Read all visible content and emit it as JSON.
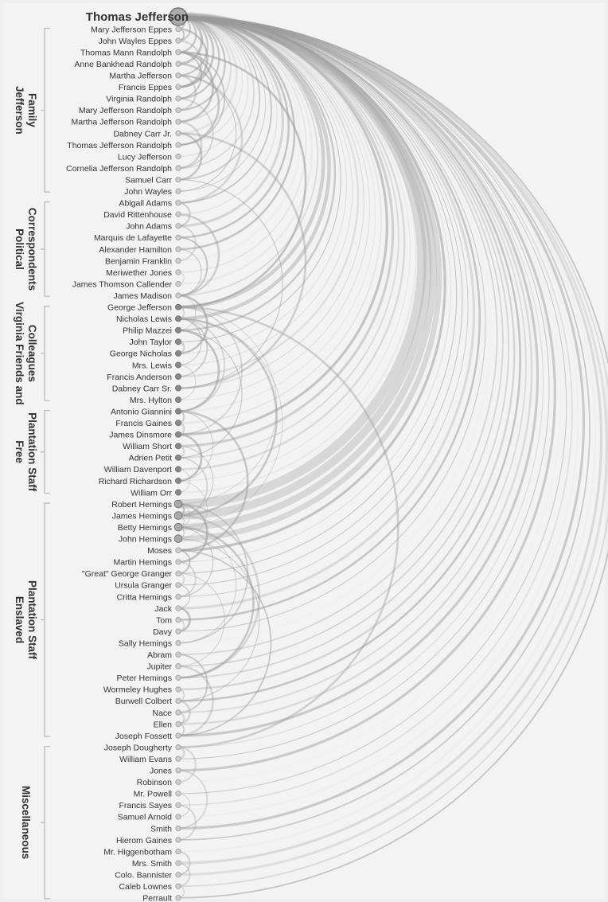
{
  "root": {
    "label": "Thomas Jefferson"
  },
  "groups": [
    {
      "label_lines": [
        "Jefferson",
        "Family"
      ],
      "members": [
        "Mary Jefferson Eppes",
        "John Wayles Eppes",
        "Thomas Mann Randolph",
        "Anne Bankhead Randolph",
        "Martha Jefferson",
        "Francis Eppes",
        "Virginia Randolph",
        "Mary Jefferson Randolph",
        "Martha Jefferson Randolph",
        "Dabney Carr Jr.",
        "Thomas Jefferson Randolph",
        "Lucy Jefferson",
        "Cornelia Jefferson Randolph",
        "Samuel Carr",
        "John Wayles"
      ]
    },
    {
      "label_lines": [
        "Political",
        "Correspondents"
      ],
      "members": [
        "Abigail Adams",
        "David Rittenhouse",
        "John Adams",
        "Marquis de Lafayette",
        "Alexander Hamilton",
        "Benjamin Franklin",
        "Meriwether Jones",
        "James Thomson Callender",
        "James Madison"
      ]
    },
    {
      "label_lines": [
        "Virginia Friends and",
        "Colleagues"
      ],
      "members": [
        "George Jefferson",
        "Nicholas Lewis",
        "Philip Mazzei",
        "John Taylor",
        "George Nicholas",
        "Mrs. Lewis",
        "Francis Anderson",
        "Dabney Carr Sr.",
        "Mrs. Hylton"
      ]
    },
    {
      "label_lines": [
        "Free",
        "Plantation Staff"
      ],
      "members": [
        "Antonio Giannini",
        "Francis Gaines",
        "James Dinsmore",
        "William Short",
        "Adrien Petit",
        "William Davenport",
        "Richard Richardson",
        "William Orr"
      ]
    },
    {
      "label_lines": [
        "Enslaved",
        "Plantation Staff"
      ],
      "members": [
        "Robert Hemings",
        "James Hemings",
        "Betty Hemings",
        "John Hemings",
        "Moses",
        "Martin Hemings",
        "\"Great\" George Granger",
        "Ursula Granger",
        "Critta Hemings",
        "Jack",
        "Tom",
        "Davy",
        "Sally Hemings",
        "Abram",
        "Jupiter",
        "Peter Hemings",
        "Wormeley Hughes",
        "Burwell Colbert",
        "Nace",
        "Ellen",
        "Joseph Fossett"
      ]
    },
    {
      "label_lines": [
        "Miscellaneous"
      ],
      "members": [
        "Joseph Dougherty",
        "William Evans",
        "Jones",
        "Robinson",
        "Mr. Powell",
        "Francis Sayes",
        "Samuel Arnold",
        "Smith",
        "Hierom Gaines",
        "Mr. Higgenbotham",
        "Mrs. Smith",
        "Colo. Bannister",
        "Caleb Lownes",
        "Perrault"
      ]
    }
  ],
  "colors": {
    "node_light": "#cdcdcd",
    "node_dark": "#888888",
    "arc": "#9a9a9a",
    "bracket": "#bbbbbb"
  },
  "cross_links": [
    [
      "Mary Jefferson Eppes",
      "John Wayles Eppes"
    ],
    [
      "Mary Jefferson Eppes",
      "Francis Eppes"
    ],
    [
      "John Wayles Eppes",
      "Francis Eppes"
    ],
    [
      "Thomas Mann Randolph",
      "Martha Jefferson Randolph"
    ],
    [
      "Thomas Mann Randolph",
      "Virginia Randolph"
    ],
    [
      "Thomas Mann Randolph",
      "Thomas Jefferson Randolph"
    ],
    [
      "Anne Bankhead Randolph",
      "Thomas Jefferson Randolph"
    ],
    [
      "Martha Jefferson",
      "Mary Jefferson Randolph"
    ],
    [
      "Martha Jefferson",
      "John Wayles"
    ],
    [
      "Virginia Randolph",
      "Cornelia Jefferson Randolph"
    ],
    [
      "Martha Jefferson Randolph",
      "Cornelia Jefferson Randolph"
    ],
    [
      "Dabney Carr Jr.",
      "Samuel Carr"
    ],
    [
      "Dabney Carr Jr.",
      "Dabney Carr Sr."
    ],
    [
      "Samuel Carr",
      "Dabney Carr Sr."
    ],
    [
      "Martha Jefferson",
      "Abigail Adams"
    ],
    [
      "Thomas Mann Randolph",
      "George Jefferson"
    ],
    [
      "John Adams",
      "Abigail Adams"
    ],
    [
      "John Adams",
      "Benjamin Franklin"
    ],
    [
      "Marquis de Lafayette",
      "James Madison"
    ],
    [
      "Alexander Hamilton",
      "James Madison"
    ],
    [
      "Meriwether Jones",
      "James Thomson Callender"
    ],
    [
      "David Rittenhouse",
      "James Madison"
    ],
    [
      "James Madison",
      "George Nicholas"
    ],
    [
      "James Madison",
      "Philip Mazzei"
    ],
    [
      "George Jefferson",
      "Nicholas Lewis"
    ],
    [
      "George Jefferson",
      "James Dinsmore"
    ],
    [
      "George Jefferson",
      "Robert Hemings"
    ],
    [
      "George Jefferson",
      "Joseph Dougherty"
    ],
    [
      "Nicholas Lewis",
      "Mrs. Lewis"
    ],
    [
      "Nicholas Lewis",
      "Francis Anderson"
    ],
    [
      "Nicholas Lewis",
      "Antonio Giannini"
    ],
    [
      "Nicholas Lewis",
      "James Hemings"
    ],
    [
      "Nicholas Lewis",
      "Betty Hemings"
    ],
    [
      "Philip Mazzei",
      "Antonio Giannini"
    ],
    [
      "Philip Mazzei",
      "Adrien Petit"
    ],
    [
      "John Taylor",
      "George Nicholas"
    ],
    [
      "Mrs. Lewis",
      "Mrs. Hylton"
    ],
    [
      "Antonio Giannini",
      "Francis Gaines"
    ],
    [
      "Antonio Giannini",
      "Richard Richardson"
    ],
    [
      "Antonio Giannini",
      "Moses"
    ],
    [
      "Francis Gaines",
      "James Dinsmore"
    ],
    [
      "James Dinsmore",
      "Richard Richardson"
    ],
    [
      "William Short",
      "Adrien Petit"
    ],
    [
      "William Short",
      "James Hemings"
    ],
    [
      "Adrien Petit",
      "James Hemings"
    ],
    [
      "William Davenport",
      "William Orr"
    ],
    [
      "Richard Richardson",
      "John Hemings"
    ],
    [
      "Robert Hemings",
      "James Hemings"
    ],
    [
      "Robert Hemings",
      "Betty Hemings"
    ],
    [
      "Robert Hemings",
      "Martin Hemings"
    ],
    [
      "Robert Hemings",
      "Sally Hemings"
    ],
    [
      "James Hemings",
      "Betty Hemings"
    ],
    [
      "James Hemings",
      "Peter Hemings"
    ],
    [
      "Betty Hemings",
      "John Hemings"
    ],
    [
      "Betty Hemings",
      "Critta Hemings"
    ],
    [
      "Betty Hemings",
      "Sally Hemings"
    ],
    [
      "Betty Hemings",
      "Peter Hemings"
    ],
    [
      "John Hemings",
      "Burwell Colbert"
    ],
    [
      "Moses",
      "\"Great\" George Granger"
    ],
    [
      "Moses",
      "Joseph Fossett"
    ],
    [
      "Martin Hemings",
      "Critta Hemings"
    ],
    [
      "\"Great\" George Granger",
      "Ursula Granger"
    ],
    [
      "\"Great\" George Granger",
      "Jupiter"
    ],
    [
      "Ursula Granger",
      "Jack"
    ],
    [
      "Jack",
      "Davy"
    ],
    [
      "Tom",
      "Davy"
    ],
    [
      "Abram",
      "Nace"
    ],
    [
      "Jupiter",
      "Joseph Fossett"
    ],
    [
      "Wormeley Hughes",
      "Burwell Colbert"
    ],
    [
      "Burwell Colbert",
      "Ellen"
    ],
    [
      "Nace",
      "Ellen"
    ],
    [
      "Ellen",
      "Joseph Fossett"
    ],
    [
      "Joseph Dougherty",
      "William Evans"
    ],
    [
      "Joseph Dougherty",
      "Robinson"
    ],
    [
      "Jones",
      "Smith"
    ],
    [
      "Mr. Powell",
      "Samuel Arnold"
    ],
    [
      "Francis Sayes",
      "Hierom Gaines"
    ],
    [
      "Mr. Higgenbotham",
      "Colo. Bannister"
    ],
    [
      "Mrs. Smith",
      "Caleb Lownes"
    ],
    [
      "Caleb Lownes",
      "Perrault"
    ]
  ]
}
